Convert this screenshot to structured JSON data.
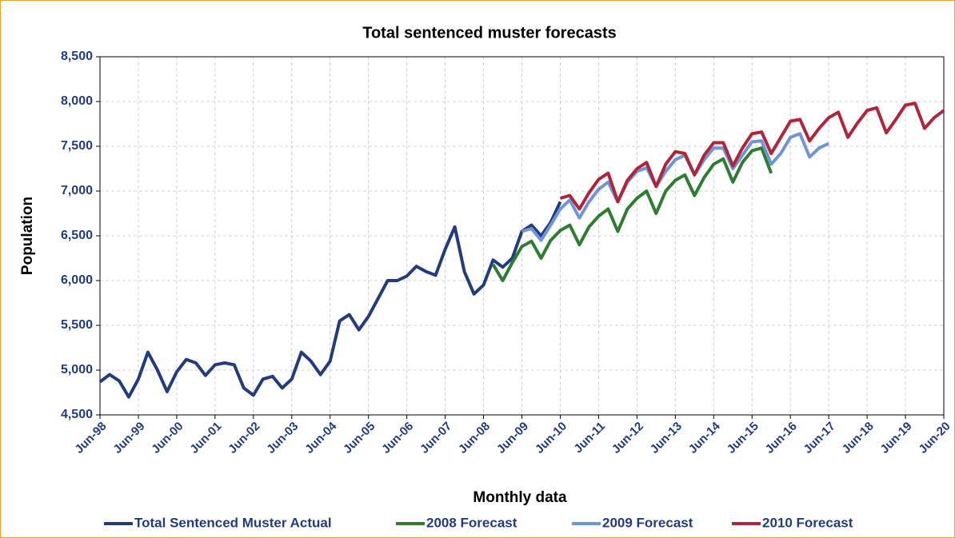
{
  "chart_data": {
    "type": "line",
    "title": "Total sentenced muster forecasts",
    "x_label": "Monthly data",
    "y_label": "Population",
    "categories": [
      "Jun-98",
      null,
      null,
      null,
      "Jun-99",
      null,
      null,
      null,
      "Jun-00",
      null,
      null,
      null,
      "Jun-01",
      null,
      null,
      null,
      "Jun-02",
      null,
      null,
      null,
      "Jun-03",
      null,
      null,
      null,
      "Jun-04",
      null,
      null,
      null,
      "Jun-05",
      null,
      null,
      null,
      "Jun-06",
      null,
      null,
      null,
      "Jun-07",
      null,
      null,
      null,
      "Jun-08",
      null,
      null,
      null,
      "Jun-09",
      null,
      null,
      null,
      "Jun-10",
      null,
      null,
      null,
      "Jun-11",
      null,
      null,
      null,
      "Jun-12",
      null,
      null,
      null,
      "Jun-13",
      null,
      null,
      null,
      "Jun-14",
      null,
      null,
      null,
      "Jun-15",
      null,
      null,
      null,
      "Jun-16",
      null,
      null,
      null,
      "Jun-17",
      null,
      null,
      null,
      "Jun-18",
      null,
      null,
      null,
      "Jun-19",
      null,
      null,
      null,
      "Jun-20"
    ],
    "series": [
      {
        "name": "Total Sentenced Muster Actual",
        "color": "#223c7c",
        "values": [
          4870,
          4950,
          4880,
          4700,
          4900,
          5200,
          5000,
          4760,
          4980,
          5120,
          5080,
          4940,
          5060,
          5080,
          5060,
          4800,
          4720,
          4900,
          4930,
          4800,
          4900,
          5200,
          5100,
          4950,
          5100,
          5550,
          5620,
          5450,
          5600,
          5800,
          6000,
          6000,
          6050,
          6160,
          6100,
          6060,
          6350,
          6600,
          6100,
          5850,
          5950,
          6230,
          6150,
          6250,
          6550,
          6620,
          6500,
          6650,
          6880,
          null,
          null,
          null,
          null,
          null,
          null,
          null,
          null,
          null,
          null,
          null,
          null,
          null,
          null,
          null,
          null,
          null,
          null,
          null,
          null,
          null,
          null,
          null,
          null,
          null,
          null,
          null,
          null,
          null,
          null,
          null,
          null,
          null,
          null,
          null,
          null,
          null,
          null,
          null,
          null
        ]
      },
      {
        "name": "2008 Forecast",
        "color": "#2e7d32",
        "values": [
          null,
          null,
          null,
          null,
          null,
          null,
          null,
          null,
          null,
          null,
          null,
          null,
          null,
          null,
          null,
          null,
          null,
          null,
          null,
          null,
          null,
          null,
          null,
          null,
          null,
          null,
          null,
          null,
          null,
          null,
          null,
          null,
          null,
          null,
          null,
          null,
          null,
          null,
          null,
          null,
          null,
          6180,
          6000,
          6200,
          6380,
          6440,
          6250,
          6450,
          6560,
          6620,
          6400,
          6600,
          6720,
          6800,
          6550,
          6800,
          6920,
          7000,
          6750,
          7000,
          7120,
          7180,
          6950,
          7150,
          7300,
          7360,
          7100,
          7320,
          7450,
          7480,
          7200,
          null,
          null,
          null,
          null,
          null,
          null,
          null,
          null,
          null,
          null,
          null,
          null,
          null,
          null,
          null,
          null,
          null,
          null
        ]
      },
      {
        "name": "2009 Forecast",
        "color": "#6f95d8",
        "values": [
          null,
          null,
          null,
          null,
          null,
          null,
          null,
          null,
          null,
          null,
          null,
          null,
          null,
          null,
          null,
          null,
          null,
          null,
          null,
          null,
          null,
          null,
          null,
          null,
          null,
          null,
          null,
          null,
          null,
          null,
          null,
          null,
          null,
          null,
          null,
          null,
          null,
          null,
          null,
          null,
          null,
          null,
          null,
          null,
          6550,
          6580,
          6450,
          6620,
          6800,
          6900,
          6700,
          6880,
          7020,
          7100,
          6880,
          7100,
          7220,
          7260,
          7050,
          7220,
          7350,
          7400,
          7180,
          7350,
          7480,
          7480,
          7250,
          7400,
          7550,
          7560,
          7300,
          7420,
          7600,
          7640,
          7380,
          7480,
          7530,
          null,
          null,
          null,
          null,
          null,
          null,
          null,
          null,
          null,
          null,
          null,
          null
        ]
      },
      {
        "name": "2010 Forecast",
        "color": "#b0253c",
        "values": [
          null,
          null,
          null,
          null,
          null,
          null,
          null,
          null,
          null,
          null,
          null,
          null,
          null,
          null,
          null,
          null,
          null,
          null,
          null,
          null,
          null,
          null,
          null,
          null,
          null,
          null,
          null,
          null,
          null,
          null,
          null,
          null,
          null,
          null,
          null,
          null,
          null,
          null,
          null,
          null,
          null,
          null,
          null,
          null,
          null,
          null,
          null,
          null,
          6920,
          6950,
          6800,
          6980,
          7130,
          7200,
          6880,
          7120,
          7250,
          7320,
          7050,
          7300,
          7440,
          7420,
          7180,
          7400,
          7540,
          7540,
          7280,
          7480,
          7640,
          7660,
          7420,
          7600,
          7780,
          7800,
          7560,
          7700,
          7820,
          7880,
          7600,
          7760,
          7900,
          7930,
          7650,
          7800,
          7960,
          7980,
          7700,
          7820,
          7900
        ]
      }
    ],
    "ylim": [
      4500,
      8500
    ],
    "yticks": [
      {
        "value": 4500,
        "label": "4,500"
      },
      {
        "value": 5000,
        "label": "5,000"
      },
      {
        "value": 5500,
        "label": "5,500"
      },
      {
        "value": 6000,
        "label": "6,000"
      },
      {
        "value": 6500,
        "label": "6,500"
      },
      {
        "value": 7000,
        "label": "7,000"
      },
      {
        "value": 7500,
        "label": "7,500"
      },
      {
        "value": 8000,
        "label": "8,000"
      },
      {
        "value": 8500,
        "label": "8,500"
      }
    ],
    "grid": true,
    "legend": "bottom"
  }
}
